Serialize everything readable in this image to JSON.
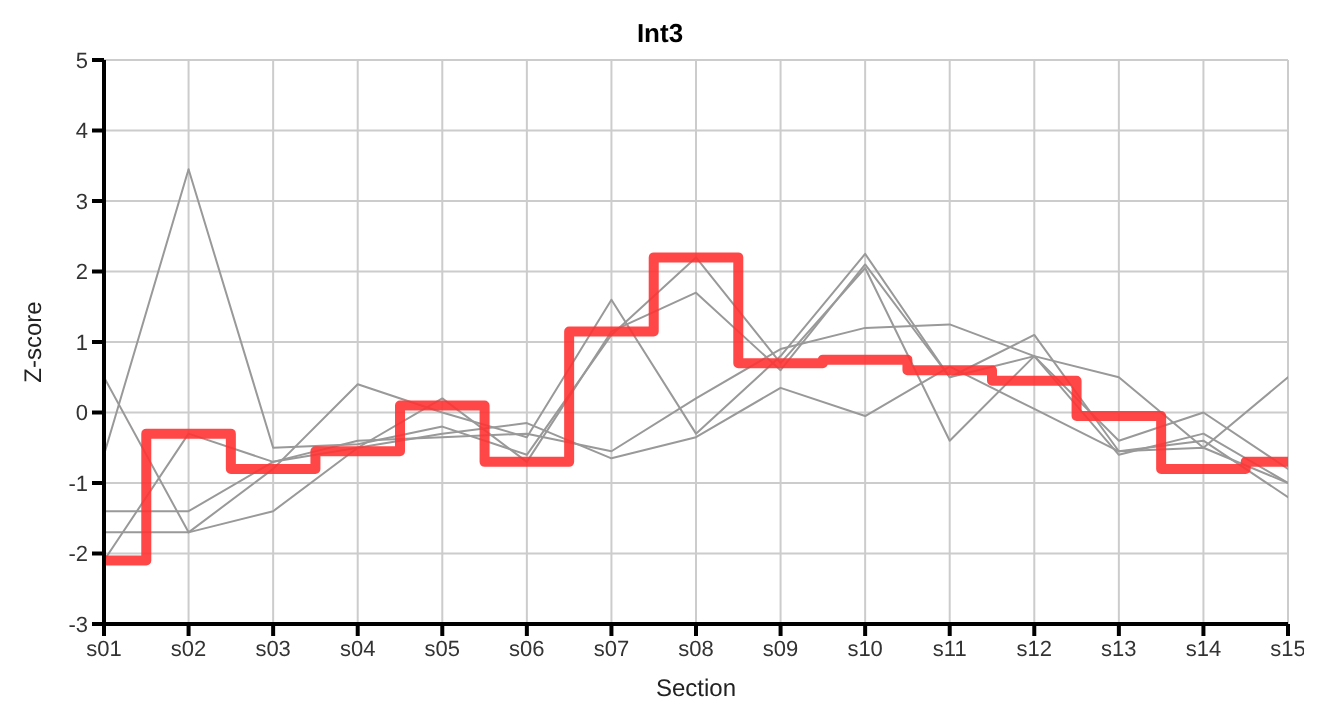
{
  "chart_data": {
    "type": "line",
    "title": "Int3",
    "xlabel": "Section",
    "ylabel": "Z-score",
    "categories": [
      "s01",
      "s02",
      "s03",
      "s04",
      "s05",
      "s06",
      "s07",
      "s08",
      "s09",
      "s10",
      "s11",
      "s12",
      "s13",
      "s14",
      "s15"
    ],
    "series": [
      {
        "color": "#999999",
        "values": [
          -0.6,
          3.45,
          -0.5,
          -0.45,
          -0.2,
          -0.6,
          1.1,
          2.2,
          0.7,
          2.05,
          -0.4,
          0.8,
          -0.6,
          -0.3,
          -1.0
        ]
      },
      {
        "color": "#999999",
        "values": [
          0.5,
          -1.7,
          -0.8,
          0.4,
          0.0,
          -0.35,
          1.6,
          -0.3,
          0.8,
          2.25,
          0.5,
          0.8,
          -0.4,
          0.0,
          -0.8
        ]
      },
      {
        "color": "#999999",
        "values": [
          -2.1,
          -0.3,
          -0.7,
          -0.5,
          -0.3,
          -0.15,
          -0.65,
          -0.35,
          0.35,
          -0.05,
          0.65,
          0.05,
          -0.55,
          -0.4,
          -1.2
        ]
      },
      {
        "color": "#999999",
        "values": [
          -1.4,
          -1.4,
          -0.7,
          -0.4,
          -0.35,
          -0.3,
          -0.55,
          0.2,
          0.9,
          1.2,
          1.25,
          0.8,
          0.5,
          -0.5,
          0.5
        ]
      },
      {
        "color": "#999999",
        "values": [
          -1.7,
          -1.7,
          -1.4,
          -0.5,
          0.2,
          -0.7,
          1.15,
          1.7,
          0.6,
          2.1,
          0.5,
          1.1,
          -0.55,
          -0.5,
          -1.0
        ]
      },
      {
        "type": "step",
        "color": "#ff3333",
        "values": [
          -2.1,
          -0.3,
          -0.8,
          -0.55,
          0.1,
          -0.7,
          1.15,
          2.2,
          0.7,
          0.75,
          0.6,
          0.45,
          -0.05,
          -0.8,
          -0.7
        ]
      }
    ],
    "ylim": [
      -3,
      5
    ],
    "yticks": [
      -3,
      -2,
      -1,
      0,
      1,
      2,
      3,
      4,
      5
    ],
    "grid": true,
    "marker": "none"
  }
}
